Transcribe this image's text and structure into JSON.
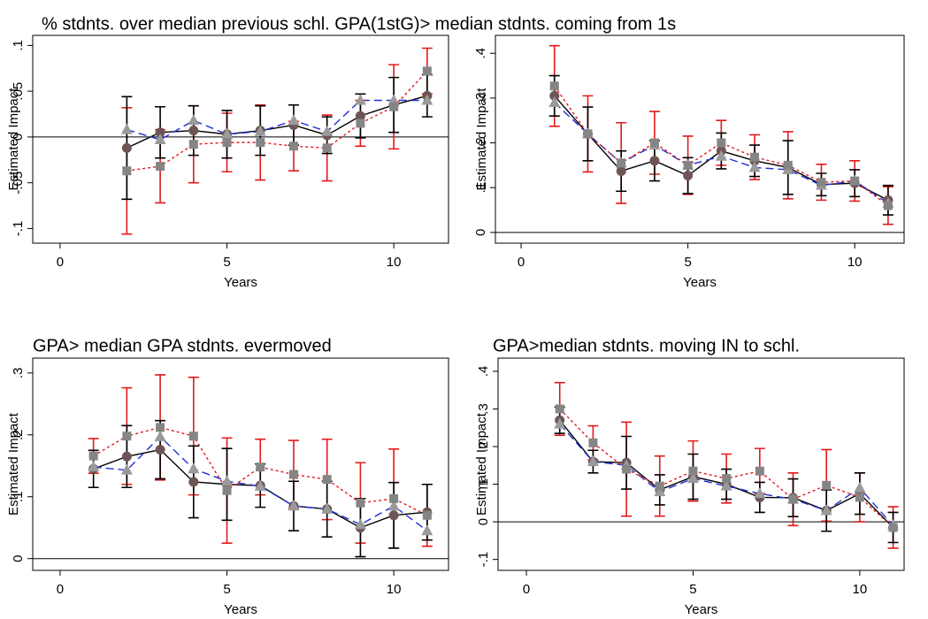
{
  "chart_data": [
    {
      "type": "line",
      "title": "% stdnts. over median previous schl. GPA(1stG)> median stdnts. coming from 1s",
      "xlabel": "Years",
      "ylabel": "Estimated Impact",
      "x": [
        2,
        3,
        4,
        5,
        6,
        7,
        8,
        9,
        10,
        11
      ],
      "xlim": [
        -0.82,
        11.64
      ],
      "xticks": [
        0,
        5,
        10
      ],
      "ylim": [
        -0.116,
        0.111
      ],
      "yticks": [
        {
          "value": -0.1,
          "label": "-.1"
        },
        {
          "value": -0.05,
          "label": "-.05"
        },
        0,
        {
          "value": 0.05,
          "label": ".05"
        },
        {
          "value": 0.1,
          "label": ".1"
        }
      ],
      "yline": 0,
      "series": [
        {
          "color": "#000000",
          "marker": "circle",
          "marker_color": "#6e5555",
          "dash": "solid",
          "values": [
            -0.012,
            0.005,
            0.007,
            0.003,
            0.007,
            0.013,
            0.002,
            0.023,
            0.035,
            0.045
          ],
          "errors": [
            0.056,
            0.028,
            0.027,
            0.026,
            0.027,
            0.022,
            0.02,
            0.024,
            0.03,
            0.023
          ]
        },
        {
          "color": "#1f2fd8",
          "marker": "triangle",
          "marker_color": "#9a9a9a",
          "dash": "dashed",
          "values": [
            0.008,
            -0.003,
            0.018,
            0.003,
            0.006,
            0.018,
            0.006,
            0.04,
            0.04,
            0.04
          ]
        },
        {
          "color": "#e31a1c",
          "marker": "square",
          "marker_color": "#858585",
          "dash": "dotted",
          "values": [
            -0.037,
            -0.032,
            -0.008,
            -0.006,
            -0.006,
            -0.01,
            -0.012,
            0.015,
            0.033,
            0.072
          ],
          "errors": [
            0.069,
            0.04,
            0.042,
            0.032,
            0.041,
            0.027,
            0.036,
            0.025,
            0.046,
            0.025
          ]
        }
      ]
    },
    {
      "type": "line",
      "xlabel": "Years",
      "ylabel": "Estimated Impact",
      "x": [
        1,
        2,
        3,
        4,
        5,
        6,
        7,
        8,
        9,
        10,
        11
      ],
      "xlim": [
        -0.77,
        11.48
      ],
      "xticks": [
        0,
        5,
        10
      ],
      "ylim": [
        -0.024,
        0.44
      ],
      "yticks": [
        0,
        {
          "value": 0.1,
          "label": ".1"
        },
        {
          "value": 0.2,
          "label": ".2"
        },
        {
          "value": 0.3,
          "label": ".3"
        },
        {
          "value": 0.4,
          "label": ".4"
        }
      ],
      "yline": 0,
      "series": [
        {
          "color": "#000000",
          "marker": "circle",
          "marker_color": "#6e5555",
          "dash": "solid",
          "values": [
            0.305,
            0.22,
            0.137,
            0.16,
            0.127,
            0.182,
            0.16,
            0.145,
            0.107,
            0.11,
            0.072
          ],
          "errors": [
            0.045,
            0.06,
            0.045,
            0.045,
            0.04,
            0.04,
            0.035,
            0.06,
            0.025,
            0.03,
            0.033
          ]
        },
        {
          "color": "#1f2fd8",
          "marker": "triangle",
          "marker_color": "#9a9a9a",
          "dash": "dashed",
          "values": [
            0.29,
            0.22,
            0.155,
            0.195,
            0.15,
            0.17,
            0.145,
            0.14,
            0.105,
            0.115,
            0.065
          ]
        },
        {
          "color": "#e31a1c",
          "marker": "square",
          "marker_color": "#858585",
          "dash": "dotted",
          "values": [
            0.327,
            0.22,
            0.155,
            0.2,
            0.15,
            0.2,
            0.168,
            0.15,
            0.112,
            0.115,
            0.06
          ],
          "errors": [
            0.09,
            0.085,
            0.09,
            0.07,
            0.065,
            0.05,
            0.05,
            0.075,
            0.04,
            0.045,
            0.042
          ]
        }
      ]
    },
    {
      "type": "line",
      "title": "GPA> median GPA stdnts. evermoved",
      "xlabel": "Years",
      "ylabel": "Estimated Impact",
      "x": [
        1,
        2,
        3,
        4,
        5,
        6,
        7,
        8,
        9,
        10,
        11
      ],
      "xlim": [
        -0.82,
        11.64
      ],
      "xticks": [
        0,
        5,
        10
      ],
      "ylim": [
        -0.019,
        0.324
      ],
      "yticks": [
        0,
        {
          "value": 0.1,
          "label": ".1"
        },
        {
          "value": 0.2,
          "label": ".2"
        },
        {
          "value": 0.3,
          "label": ".3"
        }
      ],
      "yline": 0,
      "series": [
        {
          "color": "#000000",
          "marker": "circle",
          "marker_color": "#6e5555",
          "dash": "solid",
          "values": [
            0.145,
            0.165,
            0.176,
            0.124,
            0.12,
            0.118,
            0.085,
            0.08,
            0.05,
            0.07,
            0.075
          ],
          "errors": [
            0.03,
            0.05,
            0.047,
            0.058,
            0.058,
            0.035,
            0.04,
            0.045,
            0.047,
            0.053,
            0.045
          ]
        },
        {
          "color": "#1f2fd8",
          "marker": "triangle",
          "marker_color": "#9a9a9a",
          "dash": "dashed",
          "values": [
            0.148,
            0.143,
            0.197,
            0.145,
            0.125,
            0.117,
            0.085,
            0.08,
            0.055,
            0.085,
            0.045
          ]
        },
        {
          "color": "#e31a1c",
          "marker": "square",
          "marker_color": "#858585",
          "dash": "dotted",
          "values": [
            0.166,
            0.198,
            0.212,
            0.198,
            0.11,
            0.148,
            0.136,
            0.128,
            0.09,
            0.097,
            0.07
          ],
          "errors": [
            0.028,
            0.078,
            0.085,
            0.095,
            0.085,
            0.045,
            0.055,
            0.065,
            0.065,
            0.08,
            0.05
          ]
        }
      ]
    },
    {
      "type": "line",
      "title": "GPA>median stdnts. moving IN to schl.",
      "xlabel": "Years",
      "ylabel": "Estimated Impact",
      "x": [
        1,
        2,
        3,
        4,
        5,
        6,
        7,
        8,
        9,
        10,
        11
      ],
      "xlim": [
        -0.85,
        11.33
      ],
      "xticks": [
        0,
        5,
        10
      ],
      "ylim": [
        -0.129,
        0.435
      ],
      "yticks": [
        {
          "value": -0.1,
          "label": "-.1"
        },
        0,
        {
          "value": 0.1,
          "label": ".1"
        },
        {
          "value": 0.2,
          "label": ".2"
        },
        {
          "value": 0.3,
          "label": ".3"
        },
        {
          "value": 0.4,
          "label": ".4"
        }
      ],
      "yline": 0,
      "series": [
        {
          "color": "#000000",
          "marker": "circle",
          "marker_color": "#6e5555",
          "dash": "solid",
          "values": [
            0.27,
            0.16,
            0.157,
            0.085,
            0.12,
            0.1,
            0.065,
            0.064,
            0.03,
            0.075,
            -0.015
          ],
          "errors": [
            0.035,
            0.03,
            0.07,
            0.04,
            0.06,
            0.04,
            0.04,
            0.05,
            0.055,
            0.055,
            0.04
          ]
        },
        {
          "color": "#1f2fd8",
          "marker": "triangle",
          "marker_color": "#9a9a9a",
          "dash": "dashed",
          "values": [
            0.26,
            0.16,
            0.15,
            0.08,
            0.115,
            0.095,
            0.075,
            0.06,
            0.03,
            0.09,
            -0.01
          ]
        },
        {
          "color": "#e31a1c",
          "marker": "square",
          "marker_color": "#858585",
          "dash": "dotted",
          "values": [
            0.3,
            0.21,
            0.14,
            0.095,
            0.135,
            0.115,
            0.135,
            0.06,
            0.097,
            0.065,
            -0.015
          ],
          "errors": [
            0.07,
            0.045,
            0.125,
            0.08,
            0.08,
            0.065,
            0.06,
            0.07,
            0.095,
            0.065,
            0.055
          ]
        }
      ]
    }
  ]
}
